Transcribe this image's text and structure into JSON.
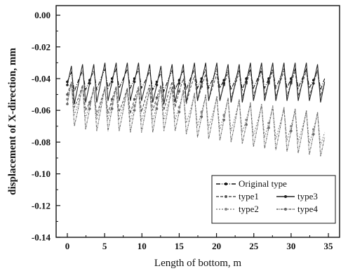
{
  "chart_data": {
    "type": "line",
    "title": "",
    "xlabel": "Length of bottom, m",
    "ylabel": "displacement of X-direction, mm",
    "xlim": [
      -1.5,
      36.5
    ],
    "ylim": [
      -0.14,
      0.006
    ],
    "xticks": [
      0,
      5,
      10,
      15,
      20,
      25,
      30,
      35
    ],
    "yticks": [
      0.0,
      -0.02,
      -0.04,
      -0.06,
      -0.08,
      -0.1,
      -0.12,
      -0.14
    ],
    "ytick_labels": [
      "0.00",
      "-0.02",
      "-0.04",
      "-0.06",
      "-0.08",
      "-0.10",
      "-0.12",
      "-0.14"
    ],
    "legend_position": "bottom-right",
    "grid": false,
    "series": [
      {
        "name": "Original type",
        "color": "#111111",
        "x": [
          0,
          1.5,
          3,
          4.5,
          6,
          7.5,
          9,
          10.5,
          12,
          13.5,
          15,
          16.5,
          18,
          19.5,
          21,
          22.5,
          24,
          25.5,
          27,
          28.5,
          30,
          31.5,
          33,
          34.5
        ],
        "y": [
          -0.042,
          -0.041,
          -0.041,
          -0.04,
          -0.04,
          -0.04,
          -0.04,
          -0.041,
          -0.042,
          -0.041,
          -0.041,
          -0.04,
          -0.04,
          -0.04,
          -0.041,
          -0.041,
          -0.04,
          -0.04,
          -0.04,
          -0.04,
          -0.04,
          -0.04,
          -0.041,
          -0.04
        ]
      },
      {
        "name": "type1",
        "color": "#555555",
        "x": [
          0,
          1.5,
          3,
          4.5,
          6,
          7.5,
          9,
          10.5,
          12,
          13.5,
          15,
          16.5,
          18,
          19.5,
          21,
          22.5,
          24,
          25.5,
          27,
          28.5,
          30,
          31.5,
          33,
          34.5
        ],
        "y": [
          -0.05,
          -0.052,
          -0.055,
          -0.054,
          -0.053,
          -0.054,
          -0.053,
          -0.052,
          -0.052,
          -0.05,
          -0.048,
          -0.046,
          -0.045,
          -0.045,
          -0.044,
          -0.044,
          -0.043,
          -0.043,
          -0.043,
          -0.043,
          -0.043,
          -0.043,
          -0.043,
          -0.043
        ]
      },
      {
        "name": "type2",
        "color": "#888888",
        "x": [
          0,
          1.5,
          3,
          4.5,
          6,
          7.5,
          9,
          10.5,
          12,
          13.5,
          15,
          16.5,
          18,
          19.5,
          21,
          22.5,
          24,
          25.5,
          27,
          28.5,
          30,
          31.5,
          33,
          34.5
        ],
        "y": [
          -0.053,
          -0.055,
          -0.056,
          -0.056,
          -0.056,
          -0.057,
          -0.057,
          -0.057,
          -0.056,
          -0.056,
          -0.058,
          -0.06,
          -0.061,
          -0.062,
          -0.063,
          -0.064,
          -0.066,
          -0.067,
          -0.068,
          -0.069,
          -0.07,
          -0.071,
          -0.072,
          -0.074
        ]
      },
      {
        "name": "type3",
        "color": "#222222",
        "x": [
          0,
          1.5,
          3,
          4.5,
          6,
          7.5,
          9,
          10.5,
          12,
          13.5,
          15,
          16.5,
          18,
          19.5,
          21,
          22.5,
          24,
          25.5,
          27,
          28.5,
          30,
          31.5,
          33,
          34.5
        ],
        "y": [
          -0.044,
          -0.043,
          -0.043,
          -0.042,
          -0.042,
          -0.042,
          -0.042,
          -0.043,
          -0.044,
          -0.043,
          -0.043,
          -0.042,
          -0.042,
          -0.042,
          -0.043,
          -0.043,
          -0.042,
          -0.042,
          -0.042,
          -0.042,
          -0.042,
          -0.042,
          -0.043,
          -0.042
        ]
      },
      {
        "name": "type4",
        "color": "#666666",
        "x": [
          0,
          1.5,
          3,
          4.5,
          6,
          7.5,
          9,
          10.5,
          12,
          13.5,
          15,
          16.5,
          18,
          19.5,
          21,
          22.5,
          24,
          25.5,
          27,
          28.5,
          30,
          31.5,
          33,
          34.5
        ],
        "y": [
          -0.056,
          -0.058,
          -0.059,
          -0.059,
          -0.059,
          -0.06,
          -0.06,
          -0.06,
          -0.059,
          -0.059,
          -0.061,
          -0.063,
          -0.064,
          -0.065,
          -0.066,
          -0.067,
          -0.069,
          -0.07,
          -0.071,
          -0.072,
          -0.073,
          -0.074,
          -0.075,
          -0.077
        ]
      }
    ]
  }
}
